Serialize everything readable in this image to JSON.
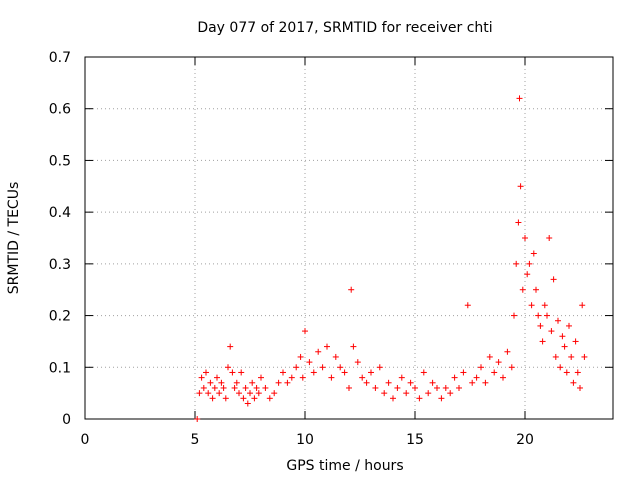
{
  "chart_data": {
    "type": "scatter",
    "title": "Day 077 of 2017, SRMTID for receiver chti",
    "xlabel": "GPS time / hours",
    "ylabel": "SRMTID / TECUs",
    "xlim": [
      0,
      24
    ],
    "ylim": [
      0,
      0.7
    ],
    "xticks": [
      0,
      5,
      10,
      15,
      20
    ],
    "xtick_labels": [
      "0",
      "5",
      "10",
      "15",
      "20"
    ],
    "yticks": [
      0,
      0.1,
      0.2,
      0.3,
      0.4,
      0.5,
      0.6,
      0.7
    ],
    "ytick_labels": [
      "0",
      "0.1",
      "0.2",
      "0.3",
      "0.4",
      "0.5",
      "0.6",
      "0.7"
    ],
    "grid": true,
    "marker": "+",
    "color": "#ff0000",
    "series": [
      {
        "name": "SRMTID",
        "x": [
          5.1,
          5.2,
          5.3,
          5.4,
          5.5,
          5.6,
          5.7,
          5.8,
          5.9,
          6.0,
          6.1,
          6.2,
          6.3,
          6.4,
          6.5,
          6.6,
          6.7,
          6.8,
          6.9,
          7.0,
          7.1,
          7.2,
          7.3,
          7.4,
          7.5,
          7.6,
          7.7,
          7.8,
          7.9,
          8.0,
          8.2,
          8.4,
          8.6,
          8.8,
          9.0,
          9.2,
          9.4,
          9.6,
          9.8,
          9.9,
          10.0,
          10.2,
          10.4,
          10.6,
          10.8,
          11.0,
          11.2,
          11.4,
          11.6,
          11.8,
          12.0,
          12.1,
          12.2,
          12.4,
          12.6,
          12.8,
          13.0,
          13.2,
          13.4,
          13.6,
          13.8,
          14.0,
          14.2,
          14.4,
          14.6,
          14.8,
          15.0,
          15.2,
          15.4,
          15.6,
          15.8,
          16.0,
          16.2,
          16.4,
          16.6,
          16.8,
          17.0,
          17.2,
          17.4,
          17.6,
          17.8,
          18.0,
          18.2,
          18.4,
          18.6,
          18.8,
          19.0,
          19.2,
          19.4,
          19.5,
          19.6,
          19.7,
          19.75,
          19.8,
          19.9,
          20.0,
          20.1,
          20.2,
          20.3,
          20.4,
          20.5,
          20.6,
          20.7,
          20.8,
          20.9,
          21.0,
          21.1,
          21.2,
          21.3,
          21.4,
          21.5,
          21.6,
          21.7,
          21.8,
          21.9,
          22.0,
          22.1,
          22.2,
          22.3,
          22.4,
          22.5,
          22.6,
          22.7
        ],
        "y": [
          0.0,
          0.05,
          0.08,
          0.06,
          0.09,
          0.05,
          0.07,
          0.04,
          0.06,
          0.08,
          0.05,
          0.07,
          0.06,
          0.04,
          0.1,
          0.14,
          0.09,
          0.06,
          0.07,
          0.05,
          0.09,
          0.04,
          0.06,
          0.03,
          0.05,
          0.07,
          0.04,
          0.06,
          0.05,
          0.08,
          0.06,
          0.04,
          0.05,
          0.07,
          0.09,
          0.07,
          0.08,
          0.1,
          0.12,
          0.08,
          0.17,
          0.11,
          0.09,
          0.13,
          0.1,
          0.14,
          0.08,
          0.12,
          0.1,
          0.09,
          0.06,
          0.25,
          0.14,
          0.11,
          0.08,
          0.07,
          0.09,
          0.06,
          0.1,
          0.05,
          0.07,
          0.04,
          0.06,
          0.08,
          0.05,
          0.07,
          0.06,
          0.04,
          0.09,
          0.05,
          0.07,
          0.06,
          0.04,
          0.06,
          0.05,
          0.08,
          0.06,
          0.09,
          0.22,
          0.07,
          0.08,
          0.1,
          0.07,
          0.12,
          0.09,
          0.11,
          0.08,
          0.13,
          0.1,
          0.2,
          0.3,
          0.38,
          0.62,
          0.45,
          0.25,
          0.35,
          0.28,
          0.3,
          0.22,
          0.32,
          0.25,
          0.2,
          0.18,
          0.15,
          0.22,
          0.2,
          0.35,
          0.17,
          0.27,
          0.12,
          0.19,
          0.1,
          0.16,
          0.14,
          0.09,
          0.18,
          0.12,
          0.07,
          0.15,
          0.09,
          0.06,
          0.22,
          0.12
        ]
      }
    ]
  }
}
